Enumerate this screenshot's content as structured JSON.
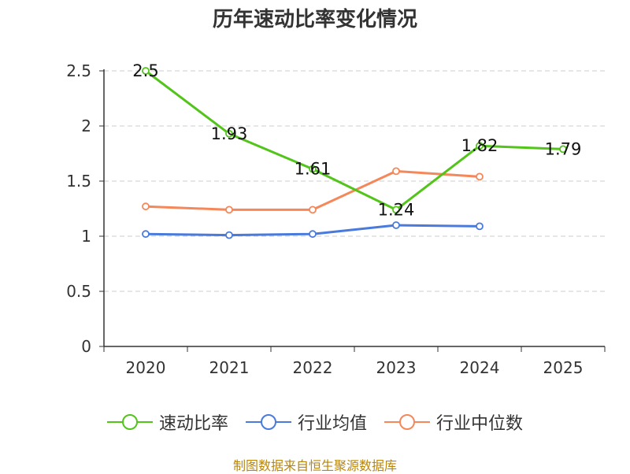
{
  "chart_data": {
    "type": "line",
    "title": "历年速动比率变化情况",
    "categories": [
      "2020",
      "2021",
      "2022",
      "2023",
      "2024",
      "2025"
    ],
    "ylim": [
      0,
      2.5
    ],
    "yticks": [
      "0",
      "0.5",
      "1",
      "1.5",
      "2",
      "2.5"
    ],
    "grid": true,
    "legend_position": "bottom",
    "series": [
      {
        "name": "速动比率",
        "color": "#52c41a",
        "values": [
          2.5,
          1.93,
          1.61,
          1.24,
          1.82,
          1.79
        ],
        "labels": [
          "2.5",
          "1.93",
          "1.61",
          "1.24",
          "1.82",
          "1.79"
        ]
      },
      {
        "name": "行业均值",
        "color": "#4a7bdc",
        "values": [
          1.02,
          1.01,
          1.02,
          1.1,
          1.09,
          null
        ]
      },
      {
        "name": "行业中位数",
        "color": "#f4885a",
        "values": [
          1.27,
          1.24,
          1.24,
          1.59,
          1.54,
          null
        ]
      }
    ],
    "source": "制图数据来自恒生聚源数据库"
  }
}
